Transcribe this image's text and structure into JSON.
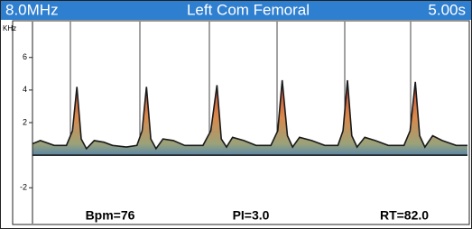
{
  "chart_data": {
    "type": "area",
    "frequency": "8.0MHz",
    "title": "Left Com Femoral",
    "duration": "5.00s",
    "ylabel": "KHz",
    "x": [
      0,
      0.09,
      0.25,
      0.39,
      0.46,
      0.51,
      0.56,
      0.62,
      0.71,
      0.82,
      0.92,
      1.08,
      1.2,
      1.26,
      1.31,
      1.36,
      1.42,
      1.5,
      1.62,
      1.75,
      1.96,
      2.05,
      2.12,
      2.17,
      2.23,
      2.3,
      2.43,
      2.57,
      2.74,
      2.82,
      2.87,
      2.93,
      2.99,
      3.07,
      3.21,
      3.36,
      3.51,
      3.57,
      3.62,
      3.67,
      3.73,
      3.82,
      3.94,
      4.09,
      4.27,
      4.34,
      4.4,
      4.45,
      4.51,
      4.6,
      4.71,
      4.87,
      5.0
    ],
    "values": [
      0.7,
      0.9,
      0.6,
      0.6,
      1.5,
      4.2,
      1.0,
      0.4,
      0.9,
      0.8,
      0.6,
      0.5,
      0.6,
      1.5,
      4.2,
      1.0,
      0.4,
      1.0,
      0.9,
      0.6,
      0.6,
      1.5,
      4.3,
      1.0,
      0.5,
      1.1,
      0.9,
      0.6,
      0.6,
      1.5,
      4.6,
      1.2,
      0.5,
      1.1,
      0.9,
      0.6,
      0.6,
      1.5,
      4.6,
      1.2,
      0.5,
      1.1,
      0.9,
      0.6,
      0.6,
      1.5,
      4.5,
      1.2,
      0.5,
      1.2,
      0.9,
      0.6,
      0.6
    ],
    "color": "#1a1a1a",
    "fill": "#d2774a",
    "xlim": [
      0,
      5
    ],
    "ylim": [
      -4.2,
      8.2
    ],
    "yticks": [
      6,
      4,
      2,
      -2
    ],
    "annotations": [
      "Bpm=76",
      "PI=3.0",
      "RT=82.0"
    ]
  }
}
